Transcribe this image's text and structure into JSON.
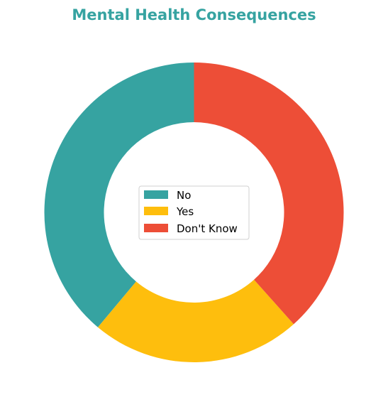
{
  "chart_data": {
    "type": "pie",
    "style": "donut",
    "title": "Mental Health Consequences",
    "categories": [
      "No",
      "Yes",
      "Don't Know"
    ],
    "values": [
      38.9,
      22.7,
      38.4
    ],
    "unit": "%",
    "colors": [
      "#36a3a1",
      "#febe0d",
      "#ed4e37"
    ],
    "title_color": "#36a3a1",
    "legend_placement": "center",
    "start_angle": "top",
    "direction": "counterclockwise"
  }
}
